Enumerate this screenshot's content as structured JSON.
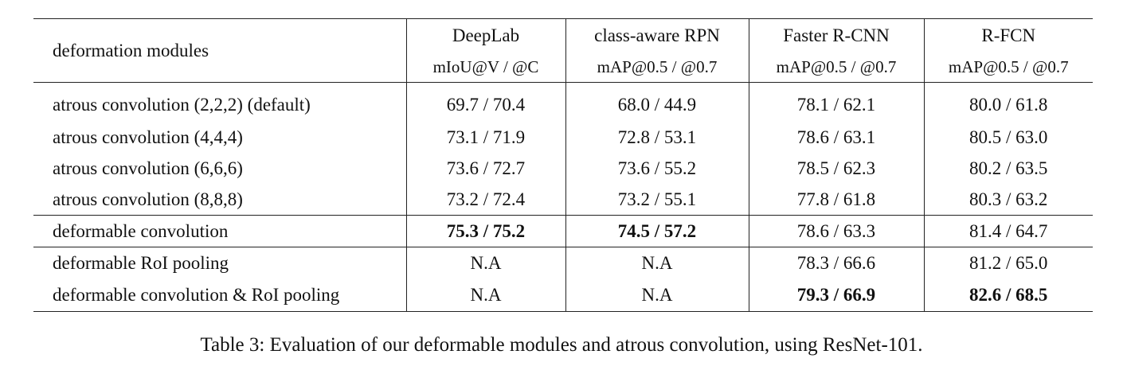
{
  "table": {
    "corner": "deformation modules",
    "columns": [
      {
        "name": "DeepLab",
        "metric": "mIoU@V / @C"
      },
      {
        "name": "class-aware RPN",
        "metric": "mAP@0.5 / @0.7"
      },
      {
        "name": "Faster R-CNN",
        "metric": "mAP@0.5 / @0.7"
      },
      {
        "name": "R-FCN",
        "metric": "mAP@0.5 / @0.7"
      }
    ],
    "rows": [
      {
        "label": "atrous convolution (2,2,2) (default)",
        "cells": [
          "69.7 / 70.4",
          "68.0 / 44.9",
          "78.1 / 62.1",
          "80.0 / 61.8"
        ]
      },
      {
        "label": "atrous convolution (4,4,4)",
        "cells": [
          "73.1 / 71.9",
          "72.8 / 53.1",
          "78.6 / 63.1",
          "80.5 / 63.0"
        ]
      },
      {
        "label": "atrous convolution (6,6,6)",
        "cells": [
          "73.6 / 72.7",
          "73.6 / 55.2",
          "78.5 / 62.3",
          "80.2 / 63.5"
        ]
      },
      {
        "label": "atrous convolution (8,8,8)",
        "cells": [
          "73.2 / 72.4",
          "73.2 / 55.1",
          "77.8 / 61.8",
          "80.3 / 63.2"
        ]
      },
      {
        "label": "deformable convolution",
        "cells": [
          "75.3 / 75.2",
          "74.5 / 57.2",
          "78.6 / 63.3",
          "81.4 / 64.7"
        ]
      },
      {
        "label": "deformable RoI pooling",
        "cells": [
          "N.A",
          "N.A",
          "78.3 / 66.6",
          "81.2 / 65.0"
        ]
      },
      {
        "label": "deformable convolution & RoI pooling",
        "cells": [
          "N.A",
          "N.A",
          "79.3 / 66.9",
          "82.6 / 68.5"
        ]
      }
    ]
  },
  "caption": "Table 3: Evaluation of our deformable modules and atrous convolution, using ResNet-101."
}
